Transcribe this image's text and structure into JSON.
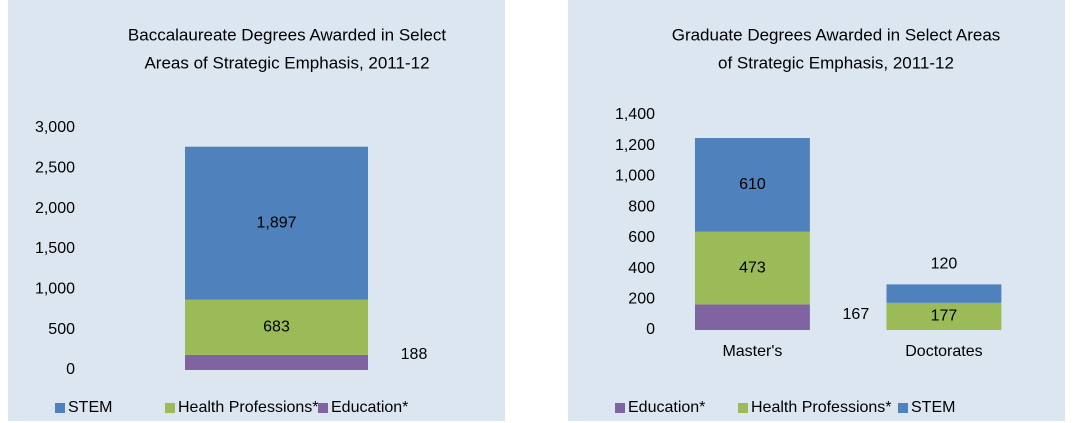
{
  "chart_data": [
    {
      "type": "bar",
      "stacked": true,
      "title": [
        "Baccalaureate Degrees Awarded in Select",
        "Areas of Strategic Emphasis, 2011-12"
      ],
      "categories": [
        null
      ],
      "series": [
        {
          "name": "STEM",
          "color": "#4f81bd",
          "values": [
            1897
          ],
          "value_labels": [
            "1,897"
          ]
        },
        {
          "name": "Health Professions*",
          "color": "#9bbb59",
          "values": [
            683
          ]
        },
        {
          "name": "Education*",
          "color": "#8064a2",
          "values": [
            188
          ]
        }
      ],
      "ylim": [
        0,
        3000
      ],
      "yticks": [
        0,
        500,
        {
          "value": 1000,
          "label": "1,000"
        },
        {
          "value": 1500,
          "label": "1,500"
        },
        {
          "value": 2000,
          "label": "2,000"
        },
        {
          "value": 2500,
          "label": "2,500"
        },
        {
          "value": 3000,
          "label": "3,000"
        }
      ]
    },
    {
      "type": "bar",
      "stacked": true,
      "title": [
        "Graduate Degrees Awarded in Select Areas",
        "of Strategic Emphasis, 2011-12"
      ],
      "categories": [
        "Master's",
        "Doctorates"
      ],
      "series": [
        {
          "name": "Education*",
          "color": "#8064a2",
          "values": [
            167,
            null
          ]
        },
        {
          "name": "Health Professions*",
          "color": "#9bbb59",
          "values": [
            473,
            177
          ]
        },
        {
          "name": "STEM",
          "color": "#4f81bd",
          "values": [
            610,
            120
          ]
        }
      ],
      "ylim": [
        0,
        1400
      ],
      "yticks": [
        0,
        200,
        400,
        600,
        800,
        {
          "value": 1000,
          "label": "1,000"
        },
        {
          "value": 1200,
          "label": "1,200"
        },
        {
          "value": 1400,
          "label": "1,400"
        }
      ]
    }
  ]
}
